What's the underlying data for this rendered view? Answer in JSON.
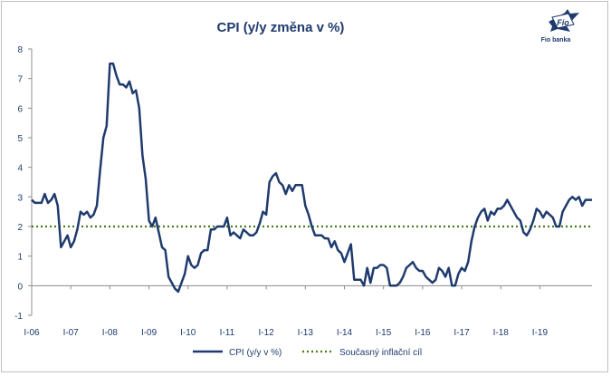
{
  "logo": {
    "text": "Fio",
    "caption": "Fio banka",
    "color": "#1f3b6e"
  },
  "chart_data": {
    "type": "line",
    "title": "CPI (y/y změna v %)",
    "xlabel": "",
    "ylabel": "",
    "ylim": [
      -1,
      8
    ],
    "yticks": [
      "-1",
      "0",
      "1",
      "2",
      "3",
      "4",
      "5",
      "6",
      "7",
      "8"
    ],
    "xticks": [
      "I-06",
      "I-07",
      "I-08",
      "I-09",
      "I-10",
      "I-11",
      "I-12",
      "I-13",
      "I-14",
      "I-15",
      "I-16",
      "I-17",
      "I-18",
      "I-19"
    ],
    "grid": false,
    "legend": "bottom",
    "colors": {
      "series": "#1f3b6e",
      "target": "#4a7a1e",
      "text": "#1f3b6e"
    },
    "series": [
      {
        "name": "CPI (y/y v %)",
        "style": "solid",
        "values": [
          2.9,
          2.8,
          2.8,
          2.8,
          3.1,
          2.8,
          2.9,
          3.1,
          2.7,
          1.3,
          1.5,
          1.7,
          1.3,
          1.5,
          1.9,
          2.5,
          2.4,
          2.5,
          2.3,
          2.4,
          2.7,
          3.9,
          5.0,
          5.4,
          7.5,
          7.5,
          7.1,
          6.8,
          6.8,
          6.7,
          6.9,
          6.5,
          6.6,
          6.0,
          4.4,
          3.6,
          2.2,
          2.0,
          2.3,
          1.8,
          1.3,
          1.2,
          0.3,
          0.1,
          -0.1,
          -0.2,
          0.1,
          0.4,
          1.0,
          0.7,
          0.6,
          0.7,
          1.1,
          1.2,
          1.2,
          1.9,
          1.9,
          2.0,
          2.0,
          2.0,
          2.3,
          1.7,
          1.8,
          1.7,
          1.6,
          1.9,
          1.8,
          1.7,
          1.7,
          1.8,
          2.1,
          2.5,
          2.4,
          3.5,
          3.7,
          3.8,
          3.5,
          3.4,
          3.1,
          3.4,
          3.2,
          3.4,
          3.4,
          3.4,
          2.7,
          2.4,
          2.0,
          1.7,
          1.7,
          1.7,
          1.6,
          1.6,
          1.3,
          1.5,
          1.2,
          1.1,
          0.8,
          1.1,
          1.4,
          0.2,
          0.2,
          0.2,
          0.0,
          0.6,
          0.1,
          0.6,
          0.6,
          0.7,
          0.7,
          0.6,
          0.0,
          0.0,
          0.0,
          0.1,
          0.3,
          0.6,
          0.7,
          0.8,
          0.6,
          0.5,
          0.5,
          0.3,
          0.2,
          0.1,
          0.2,
          0.6,
          0.5,
          0.3,
          0.6,
          0.0,
          0.0,
          0.4,
          0.6,
          0.5,
          0.8,
          1.5,
          2.0,
          2.3,
          2.5,
          2.6,
          2.2,
          2.5,
          2.4,
          2.6,
          2.6,
          2.7,
          2.9,
          2.7,
          2.5,
          2.3,
          2.2,
          1.8,
          1.7,
          1.9,
          2.2,
          2.6,
          2.5,
          2.3,
          2.5,
          2.4,
          2.3,
          2.0,
          2.0,
          2.5,
          2.7,
          2.9,
          3.0,
          2.9,
          3.0,
          2.7,
          2.9,
          2.9,
          2.9
        ]
      },
      {
        "name": "Současný inflační cíl",
        "style": "dotted",
        "values": [
          2,
          2
        ]
      }
    ]
  }
}
